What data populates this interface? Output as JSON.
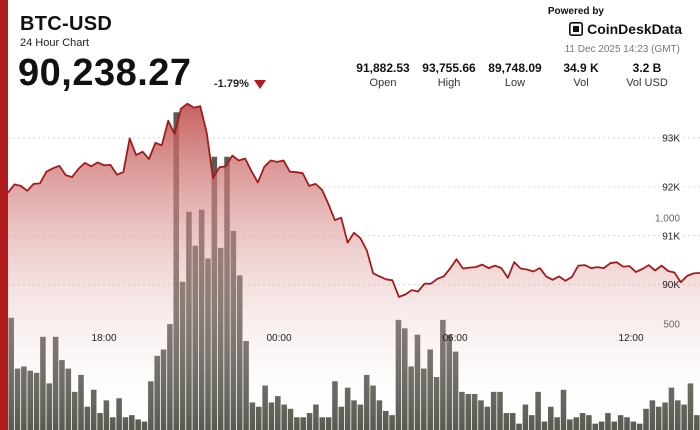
{
  "header": {
    "title": "BTC-USD",
    "subtitle": "24 Hour Chart",
    "price": "90,238.27",
    "change": "-1.79%",
    "change_direction": "down"
  },
  "brand": {
    "powered_by": "Powered by",
    "name": "CoinDeskData",
    "timestamp": "11 Dec 2025 14:23 (GMT)"
  },
  "stats": [
    {
      "value": "91,882.53",
      "label": "Open"
    },
    {
      "value": "93,755.66",
      "label": "High"
    },
    {
      "value": "89,748.09",
      "label": "Low"
    },
    {
      "value": "34.9 K",
      "label": "Vol"
    },
    {
      "value": "3.2 B",
      "label": "Vol USD"
    }
  ],
  "colors": {
    "accent": "#b01c1c",
    "line": "#a11d1d",
    "area_top": "#c0504d",
    "volume_bars": "#5a5a52"
  },
  "chart_data": {
    "type": "line",
    "price_series": {
      "name": "Price",
      "values": [
        91880,
        92050,
        92020,
        91920,
        92060,
        92070,
        92310,
        92380,
        92430,
        92240,
        92200,
        92370,
        92490,
        92420,
        92500,
        92440,
        92450,
        92250,
        92300,
        92990,
        92650,
        92720,
        92570,
        92900,
        92850,
        93350,
        93080,
        93600,
        93700,
        93620,
        93650,
        93120,
        92180,
        92400,
        92420,
        92640,
        92540,
        92580,
        92320,
        92090,
        92410,
        92540,
        92510,
        92540,
        92310,
        92300,
        92280,
        92020,
        92060,
        91940,
        91650,
        91320,
        91370,
        90860,
        91060,
        90950,
        90700,
        90230,
        90170,
        90110,
        90090,
        89750,
        89800,
        89890,
        89860,
        90020,
        90020,
        90120,
        90170,
        90330,
        90520,
        90330,
        90350,
        90360,
        90410,
        90340,
        90390,
        90340,
        90140,
        90460,
        90330,
        90310,
        90270,
        90340,
        90170,
        90100,
        90170,
        90080,
        90160,
        90390,
        90400,
        90340,
        90360,
        90340,
        90440,
        90460,
        90370,
        90380,
        90260,
        90320,
        90400,
        90290,
        90390,
        90280,
        90250,
        90050,
        90180,
        90230,
        90240
      ]
    },
    "volume_series": {
      "name": "Volume",
      "values": [
        530,
        290,
        300,
        280,
        270,
        440,
        220,
        440,
        330,
        290,
        180,
        260,
        110,
        190,
        80,
        140,
        60,
        150,
        60,
        70,
        50,
        40,
        230,
        350,
        380,
        500,
        1500,
        700,
        1030,
        870,
        1040,
        810,
        1290,
        860,
        1290,
        940,
        730,
        420,
        130,
        110,
        210,
        130,
        160,
        120,
        100,
        60,
        60,
        80,
        120,
        60,
        60,
        230,
        110,
        200,
        140,
        120,
        260,
        210,
        140,
        90,
        70,
        520,
        480,
        300,
        450,
        290,
        380,
        250,
        520,
        450,
        370,
        180,
        170,
        170,
        140,
        110,
        180,
        180,
        80,
        80,
        30,
        120,
        70,
        180,
        40,
        110,
        60,
        190,
        50,
        60,
        80,
        70,
        30,
        40,
        80,
        40,
        70,
        60,
        40,
        30,
        100,
        140,
        110,
        130,
        200,
        140,
        120,
        220,
        70
      ]
    },
    "y_ticks_price": [
      "90K",
      "91K",
      "92K",
      "93K"
    ],
    "y_ticks_price_values": [
      90000,
      91000,
      92000,
      93000
    ],
    "y_ticks_volume": [
      "500",
      "1,000"
    ],
    "y_ticks_volume_values": [
      500,
      1000
    ],
    "x_ticks": [
      "18:00",
      "00:00",
      "06:00",
      "12:00"
    ],
    "grid": true,
    "ylim_price": [
      88600,
      94500
    ],
    "ylim_volume": [
      0,
      2030
    ]
  }
}
